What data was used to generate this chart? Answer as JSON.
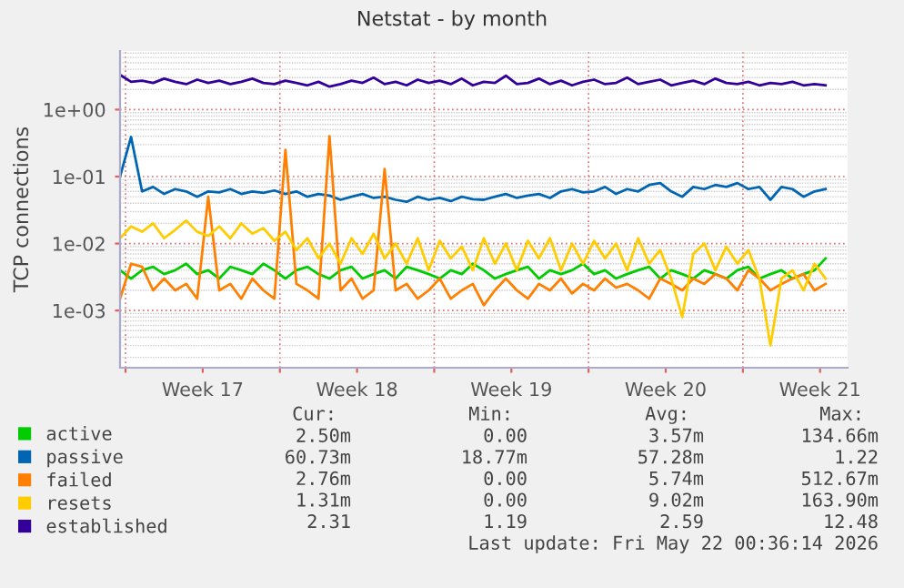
{
  "chart_data": {
    "type": "line",
    "title": "Netstat - by month",
    "ylabel": "TCP connections",
    "log": "y",
    "grid": true,
    "legend": "bottom left",
    "marker": "none",
    "line_style": "solid",
    "x": [
      "2026-04-19T18:00",
      "2026-04-20T06:00",
      "2026-04-20T18:00",
      "2026-04-21T06:00",
      "2026-04-21T18:00",
      "2026-04-22T06:00",
      "2026-04-22T18:00",
      "2026-04-23T06:00",
      "2026-04-23T18:00",
      "2026-04-24T06:00",
      "2026-04-24T18:00",
      "2026-04-25T06:00",
      "2026-04-25T18:00",
      "2026-04-26T06:00",
      "2026-04-26T18:00",
      "2026-04-27T06:00",
      "2026-04-27T18:00",
      "2026-04-28T06:00",
      "2026-04-28T18:00",
      "2026-04-29T06:00",
      "2026-04-29T18:00",
      "2026-04-30T06:00",
      "2026-04-30T18:00",
      "2026-05-01T06:00",
      "2026-05-01T18:00",
      "2026-05-02T06:00",
      "2026-05-02T18:00",
      "2026-05-03T06:00",
      "2026-05-03T18:00",
      "2026-05-04T06:00",
      "2026-05-04T18:00",
      "2026-05-05T06:00",
      "2026-05-05T18:00",
      "2026-05-06T06:00",
      "2026-05-06T18:00",
      "2026-05-07T06:00",
      "2026-05-07T18:00",
      "2026-05-08T06:00",
      "2026-05-08T18:00",
      "2026-05-09T06:00",
      "2026-05-09T18:00",
      "2026-05-10T06:00",
      "2026-05-10T18:00",
      "2026-05-11T06:00",
      "2026-05-11T18:00",
      "2026-05-12T06:00",
      "2026-05-12T18:00",
      "2026-05-13T06:00",
      "2026-05-13T18:00",
      "2026-05-14T06:00",
      "2026-05-14T18:00",
      "2026-05-15T06:00",
      "2026-05-15T18:00",
      "2026-05-16T06:00",
      "2026-05-16T18:00",
      "2026-05-17T06:00",
      "2026-05-17T18:00",
      "2026-05-18T06:00",
      "2026-05-18T18:00",
      "2026-05-19T06:00",
      "2026-05-19T18:00",
      "2026-05-20T06:00",
      "2026-05-20T18:00",
      "2026-05-21T06:00",
      "2026-05-21T18:00"
    ],
    "xlim": [
      "2026-04-19T18:00",
      "2026-05-22T18:00"
    ],
    "xticks": [
      {
        "value": "2026-04-20",
        "label": null
      },
      {
        "value": "2026-04-27",
        "label": null
      },
      {
        "value": "2026-05-04",
        "label": null
      },
      {
        "value": "2026-05-11",
        "label": null
      },
      {
        "value": "2026-05-18",
        "label": null
      },
      {
        "value": "2026-04-23T12:00",
        "label": "Week 17"
      },
      {
        "value": "2026-04-30T12:00",
        "label": "Week 18"
      },
      {
        "value": "2026-05-07T12:00",
        "label": "Week 19"
      },
      {
        "value": "2026-05-14T12:00",
        "label": "Week 20"
      },
      {
        "value": "2026-05-21T12:00",
        "label": "Week 21"
      }
    ],
    "ylim": [
      0.00014,
      7.5
    ],
    "yticks": [
      {
        "value": 1,
        "label": "1e+00"
      },
      {
        "value": 0.1,
        "label": "1e-01"
      },
      {
        "value": 0.01,
        "label": "1e-02"
      },
      {
        "value": 0.001,
        "label": "1e-03"
      }
    ],
    "series": [
      {
        "name": "active",
        "color": "#00cc00",
        "values": [
          0.004,
          0.003,
          0.004,
          0.0045,
          0.0035,
          0.004,
          0.005,
          0.0035,
          0.004,
          0.003,
          0.0045,
          0.004,
          0.0035,
          0.005,
          0.004,
          0.003,
          0.004,
          0.0045,
          0.0035,
          0.003,
          0.004,
          0.0045,
          0.003,
          0.0035,
          0.004,
          0.003,
          0.0045,
          0.004,
          0.0035,
          0.003,
          0.004,
          0.0035,
          0.005,
          0.004,
          0.003,
          0.0035,
          0.004,
          0.0045,
          0.003,
          0.004,
          0.0035,
          0.004,
          0.005,
          0.0035,
          0.004,
          0.003,
          0.0035,
          0.004,
          0.0045,
          0.003,
          0.004,
          0.0035,
          0.003,
          0.004,
          0.0035,
          0.003,
          0.004,
          0.0045,
          0.003,
          0.0035,
          0.004,
          0.003,
          0.0035,
          0.004,
          0.006
        ]
      },
      {
        "name": "passive",
        "color": "#0066b3",
        "values": [
          0.1,
          0.39,
          0.06,
          0.07,
          0.055,
          0.065,
          0.06,
          0.05,
          0.06,
          0.058,
          0.065,
          0.055,
          0.06,
          0.057,
          0.062,
          0.055,
          0.06,
          0.05,
          0.055,
          0.052,
          0.045,
          0.05,
          0.055,
          0.048,
          0.05,
          0.045,
          0.042,
          0.05,
          0.045,
          0.048,
          0.043,
          0.05,
          0.046,
          0.045,
          0.05,
          0.055,
          0.048,
          0.052,
          0.055,
          0.048,
          0.06,
          0.065,
          0.058,
          0.06,
          0.07,
          0.055,
          0.065,
          0.06,
          0.075,
          0.08,
          0.06,
          0.05,
          0.07,
          0.065,
          0.075,
          0.07,
          0.08,
          0.065,
          0.07,
          0.045,
          0.07,
          0.065,
          0.05,
          0.06,
          0.065
        ]
      },
      {
        "name": "failed",
        "color": "#ff8000",
        "values": [
          0.0015,
          0.005,
          0.0045,
          0.002,
          0.003,
          0.002,
          0.0025,
          0.0015,
          0.05,
          0.002,
          0.0025,
          0.0015,
          0.003,
          0.002,
          0.0015,
          0.25,
          0.0025,
          0.002,
          0.0015,
          0.4,
          0.002,
          0.003,
          0.0015,
          0.002,
          0.13,
          0.002,
          0.0025,
          0.0015,
          0.002,
          0.003,
          0.0015,
          0.002,
          0.0025,
          0.0012,
          0.002,
          0.003,
          0.002,
          0.0015,
          0.0025,
          0.002,
          0.003,
          0.0018,
          0.0025,
          0.002,
          0.003,
          0.0022,
          0.0025,
          0.002,
          0.0015,
          0.003,
          0.0025,
          0.002,
          0.003,
          0.0025,
          0.0035,
          0.003,
          0.002,
          0.004,
          0.003,
          0.002,
          0.0025,
          0.003,
          0.0035,
          0.002,
          0.0025
        ]
      },
      {
        "name": "resets",
        "color": "#ffcc00",
        "values": [
          0.012,
          0.018,
          0.015,
          0.02,
          0.012,
          0.016,
          0.022,
          0.015,
          0.013,
          0.018,
          0.012,
          0.02,
          0.014,
          0.017,
          0.011,
          0.015,
          0.008,
          0.012,
          0.006,
          0.01,
          0.005,
          0.012,
          0.007,
          0.014,
          0.006,
          0.01,
          0.005,
          0.012,
          0.004,
          0.011,
          0.006,
          0.009,
          0.004,
          0.012,
          0.005,
          0.01,
          0.004,
          0.011,
          0.006,
          0.012,
          0.004,
          0.01,
          0.005,
          0.011,
          0.006,
          0.01,
          0.004,
          0.012,
          0.005,
          0.008,
          0.003,
          0.0008,
          0.007,
          0.01,
          0.004,
          0.009,
          0.005,
          0.008,
          0.003,
          0.0003,
          0.003,
          0.004,
          0.002,
          0.005,
          0.003
        ]
      },
      {
        "name": "established",
        "color": "#330099",
        "values": [
          3.3,
          2.6,
          2.7,
          2.5,
          2.9,
          2.6,
          2.4,
          2.8,
          2.5,
          2.7,
          2.4,
          2.6,
          2.9,
          2.5,
          2.4,
          2.7,
          2.5,
          2.3,
          2.6,
          2.2,
          2.4,
          2.7,
          2.5,
          3.0,
          2.4,
          2.6,
          2.3,
          2.8,
          2.5,
          2.7,
          2.4,
          2.9,
          2.3,
          2.6,
          2.5,
          3.2,
          2.4,
          2.5,
          2.9,
          2.4,
          2.7,
          2.3,
          2.6,
          2.8,
          2.4,
          2.5,
          3.0,
          2.4,
          2.6,
          2.8,
          2.3,
          2.5,
          2.7,
          2.4,
          2.9,
          2.5,
          2.4,
          2.6,
          2.3,
          2.5,
          2.4,
          2.6,
          2.3,
          2.4,
          2.3
        ]
      }
    ],
    "annotations": [
      "Cur:",
      "Min:",
      "Avg:",
      "Max:",
      "2.50m",
      "0.00",
      "3.57m",
      "134.66m",
      "60.73m",
      "18.77m",
      "57.28m",
      "1.22",
      "2.76m",
      "0.00",
      "5.74m",
      "512.67m",
      "1.31m",
      "0.00",
      "9.02m",
      "163.90m",
      "2.31",
      "1.19",
      "2.59",
      "12.48",
      "Last update: Fri May 22 00:36:14 2026"
    ]
  }
}
